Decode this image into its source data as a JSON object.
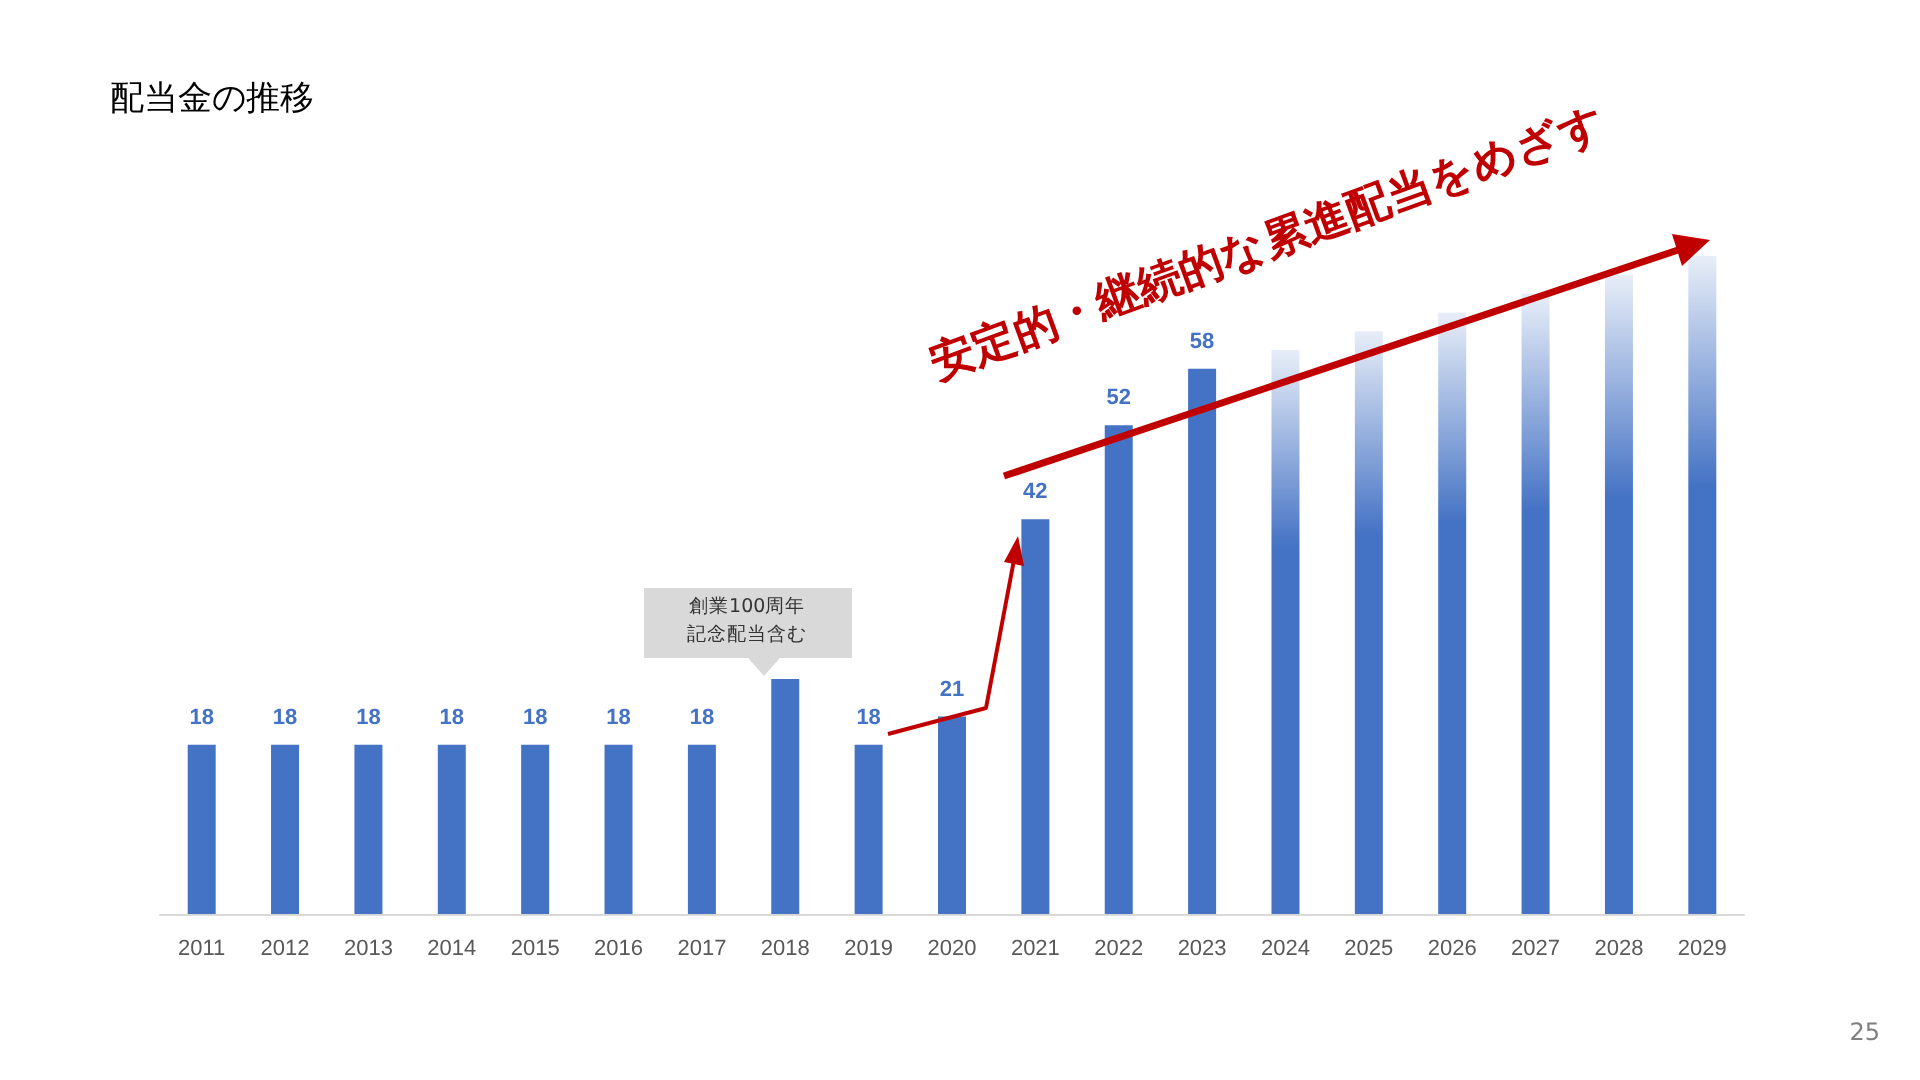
{
  "chart_data": {
    "type": "bar",
    "title": "配当金の推移",
    "categories": [
      "2011",
      "2012",
      "2013",
      "2014",
      "2015",
      "2016",
      "2017",
      "2018",
      "2019",
      "2020",
      "2021",
      "2022",
      "2023",
      "2024",
      "2025",
      "2026",
      "2027",
      "2028",
      "2029"
    ],
    "values": [
      18,
      18,
      18,
      18,
      18,
      18,
      18,
      25,
      18,
      21,
      42,
      52,
      58,
      60,
      62,
      64,
      66,
      68,
      70
    ],
    "value_labels": [
      "18",
      "18",
      "18",
      "18",
      "18",
      "18",
      "18",
      null,
      "18",
      "21",
      "42",
      "52",
      "58",
      null,
      null,
      null,
      null,
      null,
      null
    ],
    "color": "#4472c4",
    "colors": [
      "#4472c4",
      "#4472c4",
      "#4472c4",
      "#4472c4",
      "#4472c4",
      "#4472c4",
      "#4472c4",
      "#4472c4",
      "#4472c4",
      "#4472c4",
      "#4472c4",
      "#4472c4",
      "#4472c4",
      "#e8eef8",
      "#e8eef8",
      "#e8eef8",
      "#e8eef8",
      "#e8eef8",
      "#e8eef8"
    ],
    "annotations": [
      {
        "text": "創業100周年記念配当含む",
        "x": "2018",
        "y": 25
      },
      "安定的・継続的な累進配当をめざす",
      "25"
    ]
  }
}
